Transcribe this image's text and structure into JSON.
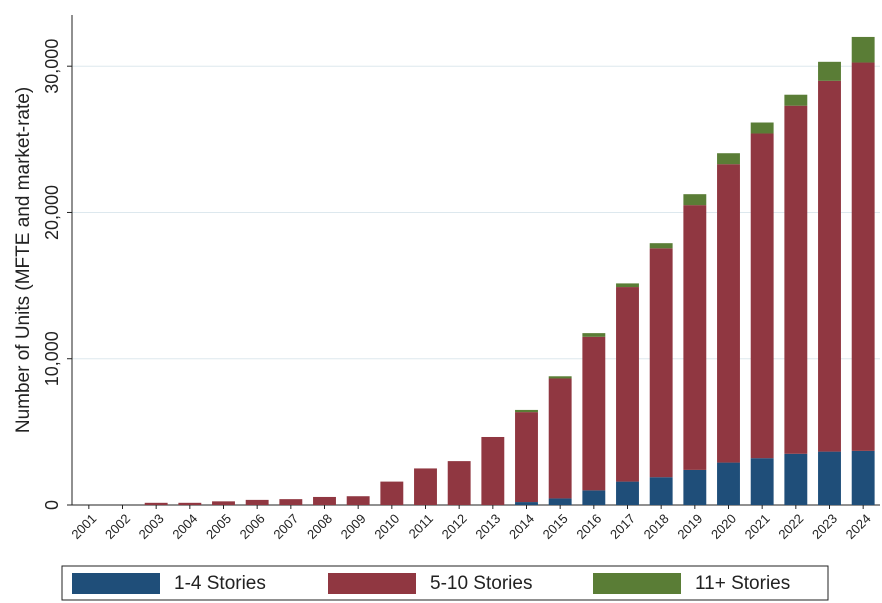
{
  "chart_data": {
    "type": "stacked_bar",
    "y_label": "Number of Units (MFTE and market-rate)",
    "categories": [
      "2001",
      "2002",
      "2003",
      "2004",
      "2005",
      "2006",
      "2007",
      "2008",
      "2009",
      "2010",
      "2011",
      "2012",
      "2013",
      "2014",
      "2015",
      "2016",
      "2017",
      "2018",
      "2019",
      "2020",
      "2021",
      "2022",
      "2023",
      "2024"
    ],
    "series": [
      {
        "name": "1-4 Stories",
        "color": "#1f4e79",
        "values": [
          0,
          0,
          0,
          0,
          0,
          0,
          0,
          0,
          0,
          0,
          0,
          0,
          0,
          200,
          450,
          1000,
          1600,
          1900,
          2400,
          2900,
          3200,
          3500,
          3650,
          3700
        ]
      },
      {
        "name": "5-10 Stories",
        "color": "#903741",
        "values": [
          0,
          0,
          150,
          150,
          250,
          350,
          400,
          550,
          600,
          1600,
          2500,
          3000,
          4650,
          6150,
          8200,
          10500,
          13300,
          15650,
          18100,
          20400,
          22200,
          23800,
          25350,
          26550
        ]
      },
      {
        "name": "11+ Stories",
        "color": "#5a7d36",
        "values": [
          0,
          0,
          0,
          0,
          0,
          0,
          0,
          0,
          0,
          0,
          0,
          0,
          0,
          150,
          150,
          250,
          250,
          350,
          750,
          750,
          750,
          750,
          1300,
          1750
        ]
      }
    ],
    "ylim": [
      0,
      33500
    ],
    "yticks": [
      0,
      {
        "value": 10000,
        "label": "10,000"
      },
      {
        "value": 20000,
        "label": "20,000"
      },
      {
        "value": 30000,
        "label": "30,000"
      }
    ],
    "grid": true,
    "legend": "bottom"
  }
}
